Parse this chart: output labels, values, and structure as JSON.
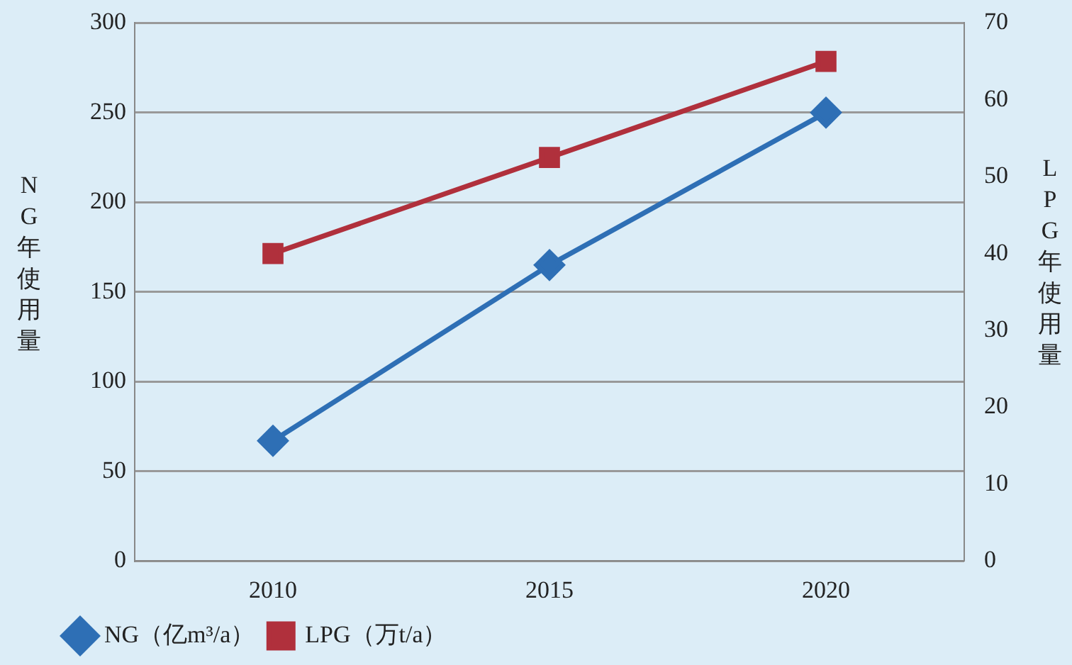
{
  "chart_data": {
    "type": "line",
    "categories": [
      "2010",
      "2015",
      "2020"
    ],
    "series": [
      {
        "name": "NG（亿m³/a）",
        "color": "#2e6fb5",
        "values": [
          67,
          165,
          250
        ],
        "marker": "diamond"
      },
      {
        "name": "LPG（万t/a）",
        "color": "#b0303c",
        "values": [
          40,
          52.5,
          65
        ],
        "marker": "square",
        "axis": "y2"
      }
    ],
    "ylabel": "NG年使用量",
    "y2label": "LPG年使用量",
    "ylim": [
      0,
      300
    ],
    "yticks": [
      0,
      50,
      100,
      150,
      200,
      250,
      300
    ],
    "y2lim": [
      0,
      70
    ],
    "y2ticks": [
      0,
      10,
      20,
      30,
      40,
      50,
      60,
      70
    ],
    "grid": "y",
    "legend": "bottom",
    "line_style": "solid"
  }
}
